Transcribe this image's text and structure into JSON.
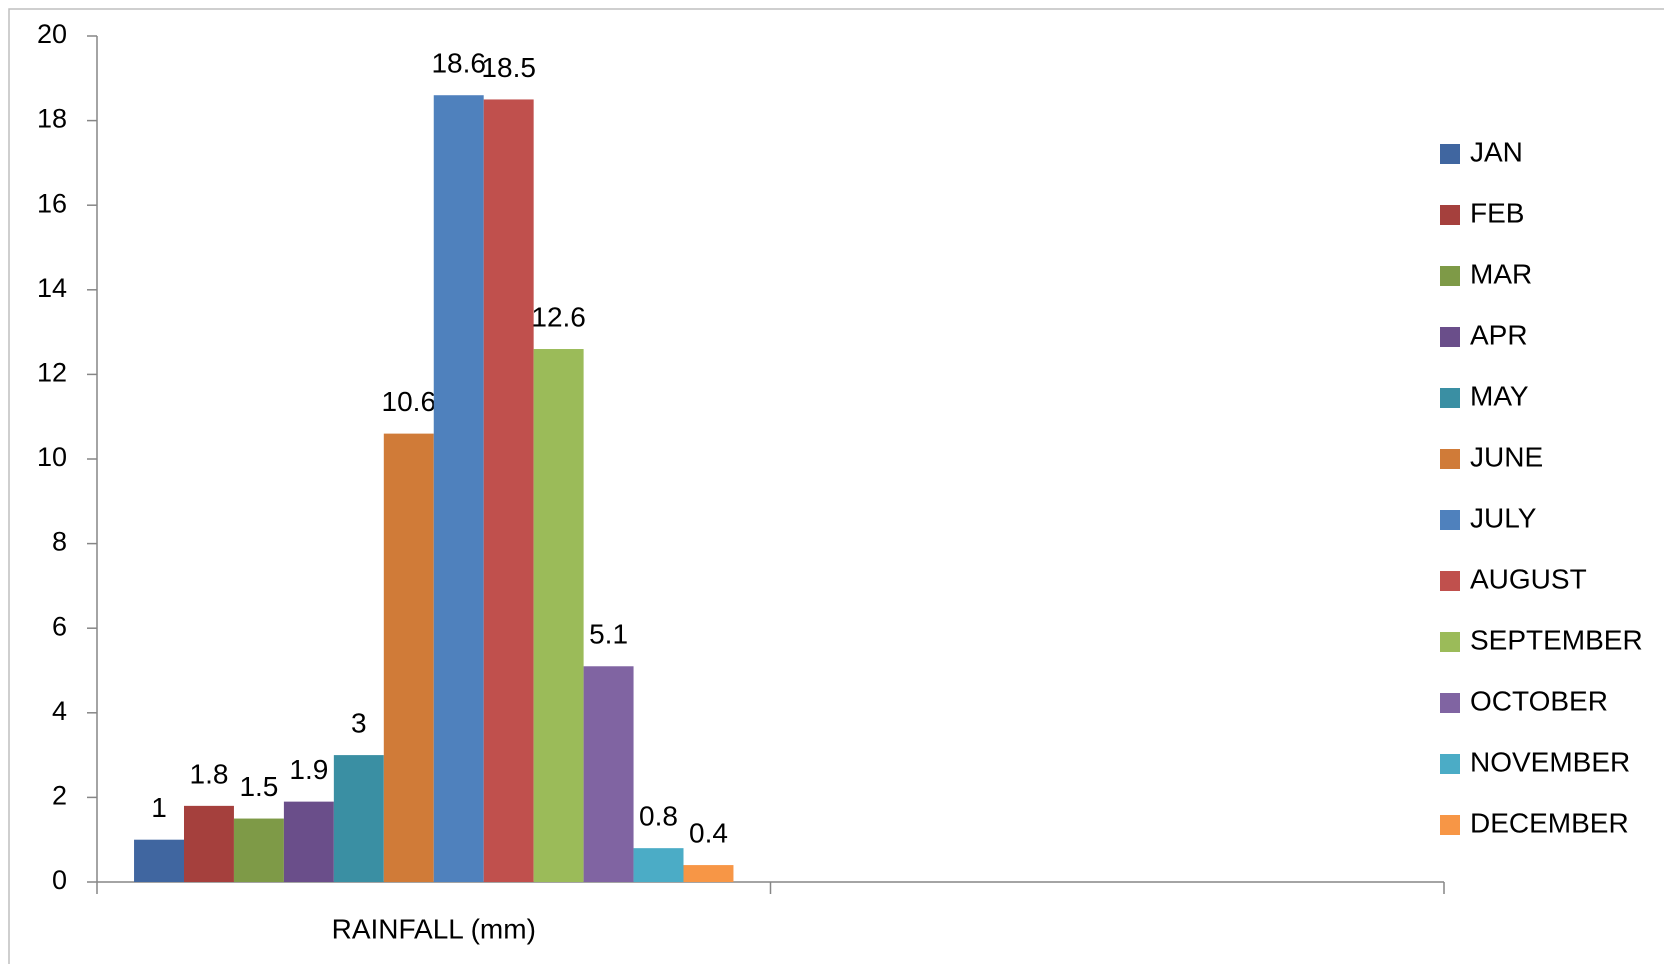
{
  "chart_data": {
    "type": "bar",
    "categories": [
      "RAINFALL (mm)",
      null
    ],
    "series": [
      {
        "name": "JAN",
        "color": "#4066a0",
        "values": [
          1,
          null
        ]
      },
      {
        "name": "FEB",
        "color": "#a5403d",
        "values": [
          1.8,
          null
        ]
      },
      {
        "name": "MAR",
        "color": "#7e9a47",
        "values": [
          1.5,
          null
        ]
      },
      {
        "name": "APR",
        "color": "#6a4e8a",
        "values": [
          1.9,
          null
        ]
      },
      {
        "name": "MAY",
        "color": "#3a8fa3",
        "values": [
          3,
          null
        ]
      },
      {
        "name": "JUNE",
        "color": "#d07b38",
        "values": [
          10.6,
          null
        ]
      },
      {
        "name": "JULY",
        "color": "#4f81bd",
        "values": [
          18.6,
          null
        ]
      },
      {
        "name": "AUGUST",
        "color": "#c0504d",
        "values": [
          18.5,
          null
        ]
      },
      {
        "name": "SEPTEMBER",
        "color": "#9bbb59",
        "values": [
          12.6,
          null
        ]
      },
      {
        "name": "OCTOBER",
        "color": "#8064a2",
        "values": [
          5.1,
          null
        ]
      },
      {
        "name": "NOVEMBER",
        "color": "#4bacc6",
        "values": [
          0.8,
          null
        ]
      },
      {
        "name": "DECEMBER",
        "color": "#f79646",
        "values": [
          0.4,
          null
        ]
      }
    ],
    "ylim": [
      0,
      20
    ],
    "yticks": [
      0,
      2,
      4,
      6,
      8,
      10,
      12,
      14,
      16,
      18,
      20
    ],
    "grid": false,
    "legend": "right"
  }
}
